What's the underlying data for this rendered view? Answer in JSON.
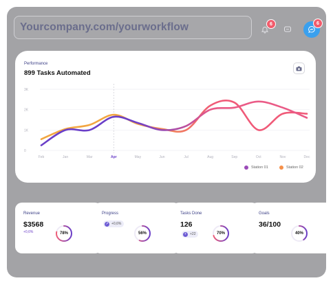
{
  "url_bar": {
    "text": "Yourcompany.com/yourworkflow"
  },
  "header": {
    "notifications_count": "6",
    "messages_count": "6"
  },
  "performance": {
    "subtitle": "Performance",
    "title": "899 Tasks Automated"
  },
  "chart_data": {
    "type": "line",
    "x": [
      "Feb",
      "Jan",
      "Mar",
      "Apr",
      "May",
      "Jun",
      "Jul",
      "Aug",
      "Sep",
      "Oct",
      "Nov",
      "Dec"
    ],
    "ytick_labels": [
      "3K",
      "2K",
      "1K",
      "0"
    ],
    "ylim": [
      0,
      3
    ],
    "highlight_category": "Apr",
    "legend": "bottom-right",
    "grid": true,
    "series": [
      {
        "name": "Station 01",
        "values": [
          0.25,
          1.0,
          1.0,
          1.65,
          1.35,
          1.0,
          1.2,
          2.0,
          2.1,
          2.4,
          2.1,
          1.6
        ],
        "color_start": "#6a3fc8",
        "color_end": "#ea5a86"
      },
      {
        "name": "Station 02",
        "values": [
          0.55,
          1.05,
          1.25,
          1.75,
          1.3,
          1.05,
          1.0,
          2.2,
          2.35,
          1.0,
          1.8,
          1.8
        ],
        "color_start": "#f2a641",
        "color_end": "#f05a78"
      }
    ]
  },
  "stats": [
    {
      "label": "Revenue",
      "value": "$3568",
      "delta": "+0,6%",
      "percent": 78,
      "percent_label": "78%"
    },
    {
      "label": "Progress",
      "pill": "+0,6%",
      "percent": 56,
      "percent_label": "56%"
    },
    {
      "label": "Tasks Done",
      "value": "126",
      "pill": "+22",
      "percent": 70,
      "percent_label": "70%"
    },
    {
      "label": "Goals",
      "value": "36/100",
      "percent": 40,
      "percent_label": "40%"
    }
  ],
  "colors": {
    "frame": "#a3a3a6",
    "accent": "#6a3fc8",
    "badge": "#f25c6c",
    "avatar": "#3aa0ee"
  }
}
